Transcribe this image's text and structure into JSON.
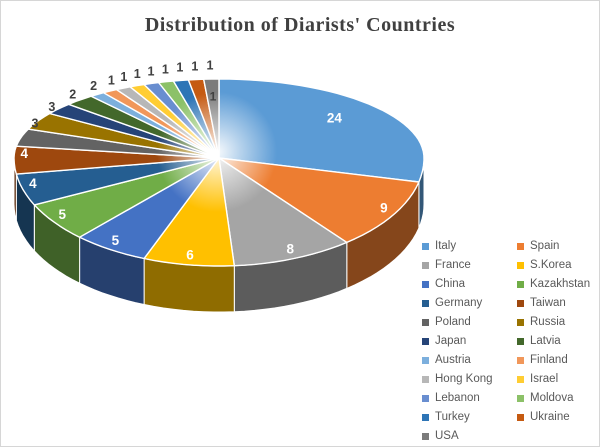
{
  "title": "Distribution of Diarists' Countries",
  "chart_data": {
    "type": "pie",
    "is_3d": true,
    "title": "Distribution of Diarists' Countries",
    "total": 84,
    "start_angle_deg": 0,
    "direction": "clockwise",
    "legend_position": "bottom-right, two columns",
    "data_label_inside_color": "#ffffff",
    "data_label_outside_color": "#404040",
    "series": [
      {
        "label": "Italy",
        "value": 24,
        "color": "#5B9BD5"
      },
      {
        "label": "Spain",
        "value": 9,
        "color": "#ED7D31"
      },
      {
        "label": "France",
        "value": 8,
        "color": "#A5A5A5"
      },
      {
        "label": "S.Korea",
        "value": 6,
        "color": "#FFC000"
      },
      {
        "label": "China",
        "value": 5,
        "color": "#4472C4"
      },
      {
        "label": "Kazakhstan",
        "value": 5,
        "color": "#70AD47"
      },
      {
        "label": "Germany",
        "value": 4,
        "color": "#255E91"
      },
      {
        "label": "Taiwan",
        "value": 4,
        "color": "#9E480E"
      },
      {
        "label": "Poland",
        "value": 3,
        "color": "#636363"
      },
      {
        "label": "Russia",
        "value": 3,
        "color": "#997300"
      },
      {
        "label": "Japan",
        "value": 2,
        "color": "#264478"
      },
      {
        "label": "Latvia",
        "value": 2,
        "color": "#43682B"
      },
      {
        "label": "Austria",
        "value": 1,
        "color": "#7CAFDD"
      },
      {
        "label": "Finland",
        "value": 1,
        "color": "#F1975A"
      },
      {
        "label": "Hong Kong",
        "value": 1,
        "color": "#B7B7B7"
      },
      {
        "label": "Israel",
        "value": 1,
        "color": "#FFCD33"
      },
      {
        "label": "Lebanon",
        "value": 1,
        "color": "#698ED0"
      },
      {
        "label": "Moldova",
        "value": 1,
        "color": "#8CC168"
      },
      {
        "label": "Turkey",
        "value": 1,
        "color": "#2E75B6"
      },
      {
        "label": "Ukraine",
        "value": 1,
        "color": "#C55A11"
      },
      {
        "label": "USA",
        "value": 1,
        "color": "#7B7B7B"
      }
    ]
  }
}
